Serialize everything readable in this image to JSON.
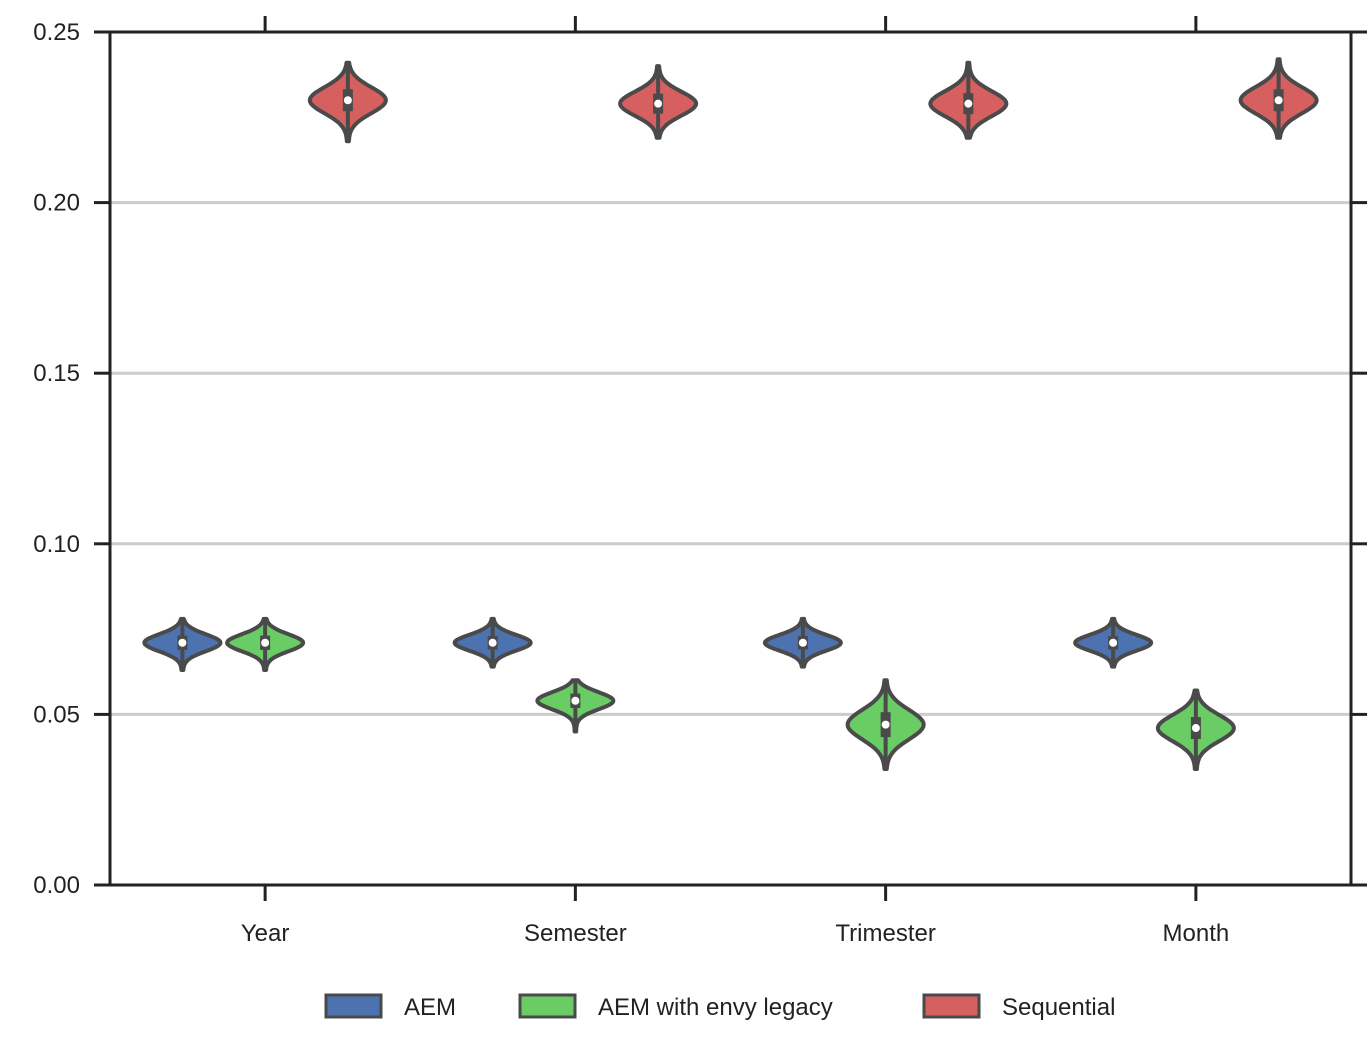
{
  "chart_data": {
    "type": "violin",
    "categories": [
      "Year",
      "Semester",
      "Trimester",
      "Month"
    ],
    "ylim": [
      0.0,
      0.25
    ],
    "yticks": [
      0.0,
      0.05,
      0.1,
      0.15,
      0.2,
      0.25
    ],
    "ytick_labels": [
      "0.00",
      "0.05",
      "0.10",
      "0.15",
      "0.20",
      "0.25"
    ],
    "grid": "horizontal",
    "legend_position": "bottom",
    "series": [
      {
        "name": "AEM",
        "color": "#4c72b0",
        "medians": [
          0.071,
          0.071,
          0.071,
          0.071
        ],
        "min": [
          0.063,
          0.064,
          0.064,
          0.064
        ],
        "max": [
          0.078,
          0.078,
          0.078,
          0.078
        ]
      },
      {
        "name": "AEM with envy legacy",
        "color": "#6acc65",
        "medians": [
          0.071,
          0.054,
          0.047,
          0.046
        ],
        "min": [
          0.063,
          0.045,
          0.034,
          0.034
        ],
        "max": [
          0.078,
          0.06,
          0.06,
          0.057
        ]
      },
      {
        "name": "Sequential",
        "color": "#d65f5f",
        "medians": [
          0.23,
          0.229,
          0.229,
          0.23
        ],
        "min": [
          0.218,
          0.219,
          0.219,
          0.219
        ],
        "max": [
          0.241,
          0.24,
          0.241,
          0.242
        ]
      }
    ]
  }
}
